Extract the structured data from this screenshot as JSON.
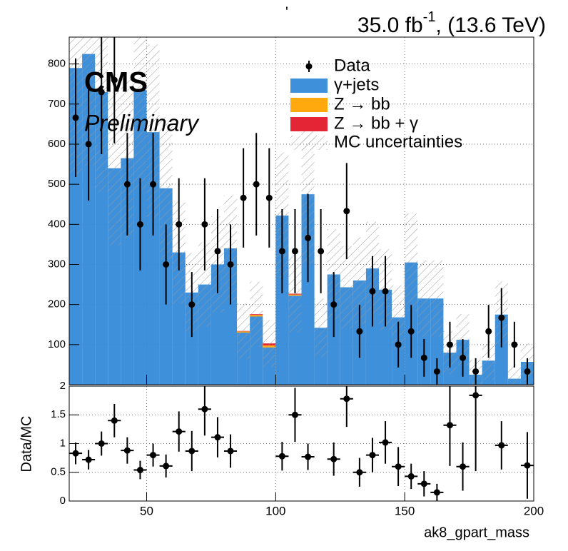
{
  "header": {
    "mark": "'",
    "lumi_prefix": "35.0 fb",
    "lumi_sup": "-1",
    "lumi_suffix": ", (13.6 TeV)"
  },
  "chart_data": [
    {
      "type": "histogram",
      "label": "CMS",
      "sublabel": "Preliminary",
      "bins": [
        20,
        25,
        30,
        35,
        40,
        45,
        50,
        55,
        60,
        65,
        70,
        75,
        80,
        85,
        90,
        95,
        100,
        105,
        110,
        115,
        120,
        125,
        130,
        135,
        140,
        145,
        150,
        155,
        160,
        165,
        170,
        175,
        180,
        185,
        190,
        195,
        200
      ],
      "series": [
        {
          "name": "γ+jets",
          "color": "#3f90da",
          "values": [
            790,
            825,
            730,
            540,
            565,
            735,
            630,
            490,
            330,
            230,
            250,
            300,
            340,
            130,
            170,
            93,
            422,
            222,
            475,
            142,
            275,
            243,
            260,
            290,
            237,
            168,
            305,
            215,
            215,
            80,
            112,
            25,
            60,
            175,
            15,
            57
          ]
        },
        {
          "name": "Z → bb",
          "color": "#ffa90e",
          "values": [
            0,
            0,
            0,
            0,
            0,
            0,
            0,
            0,
            0,
            0,
            0,
            0,
            0,
            3,
            4,
            5,
            0,
            3,
            0,
            0,
            0,
            0,
            0,
            0,
            0,
            0,
            0,
            0,
            0,
            0,
            0,
            0,
            0,
            0,
            0,
            0
          ]
        },
        {
          "name": "Z → bb + γ",
          "color": "#e42536",
          "values": [
            0,
            0,
            0,
            0,
            0,
            0,
            0,
            0,
            0,
            0,
            0,
            0,
            0,
            1,
            2,
            5,
            0,
            2,
            0,
            0,
            0,
            0,
            0,
            0,
            0,
            0,
            0,
            0,
            0,
            0,
            0,
            0,
            0,
            0,
            0,
            0
          ]
        }
      ],
      "uncertainty": {
        "name": "MC uncertainties",
        "values": [
          267,
          278,
          249,
          192,
          200,
          250,
          219,
          177,
          129,
          99,
          105,
          120,
          132,
          69,
          81,
          58,
          157,
          97,
          173,
          73,
          113,
          103,
          108,
          117,
          101,
          80,
          122,
          95,
          95,
          54,
          64,
          38,
          48,
          83,
          35,
          47
        ]
      },
      "data": {
        "name": "Data",
        "x": [
          22.5,
          27.5,
          32.5,
          37.5,
          42.5,
          47.5,
          52.5,
          57.5,
          62.5,
          67.5,
          72.5,
          77.5,
          82.5,
          87.5,
          92.5,
          97.5,
          102.5,
          107.5,
          112.5,
          117.5,
          122.5,
          127.5,
          132.5,
          137.5,
          142.5,
          147.5,
          152.5,
          157.5,
          162.5,
          167.5,
          172.5,
          177.5,
          182.5,
          187.5,
          192.5,
          197.5
        ],
        "values": [
          666,
          600,
          730,
          760,
          500,
          400,
          500,
          300,
          400,
          200,
          400,
          333,
          300,
          466,
          500,
          466,
          333,
          333,
          366,
          333,
          200,
          433,
          133,
          233,
          233,
          100,
          133,
          67,
          33,
          100,
          67,
          33,
          133,
          167,
          100,
          33
        ],
        "errors": [
          148,
          141,
          155,
          158,
          128,
          115,
          128,
          100,
          115,
          81,
          115,
          105,
          100,
          124,
          128,
          124,
          105,
          105,
          110,
          105,
          81,
          120,
          66,
          88,
          88,
          57,
          66,
          47,
          33,
          57,
          47,
          33,
          66,
          74,
          57,
          33
        ]
      },
      "xlim": [
        20,
        200
      ],
      "ylim": [
        0,
        867
      ],
      "yticks": [
        100,
        200,
        300,
        400,
        500,
        600,
        700,
        800
      ],
      "grid": true
    },
    {
      "type": "ratio",
      "ylabel": "Data/MC",
      "xlabel": "ak8_gpart_mass",
      "x": [
        22.5,
        27.5,
        32.5,
        37.5,
        42.5,
        47.5,
        52.5,
        57.5,
        62.5,
        67.5,
        72.5,
        77.5,
        82.5,
        87.5,
        92.5,
        97.5,
        102.5,
        107.5,
        112.5,
        117.5,
        122.5,
        127.5,
        132.5,
        137.5,
        142.5,
        147.5,
        152.5,
        157.5,
        162.5,
        167.5,
        172.5,
        177.5,
        182.5,
        187.5,
        192.5,
        197.5
      ],
      "values": [
        0.83,
        0.72,
        1.0,
        1.4,
        0.88,
        0.54,
        0.8,
        0.61,
        1.21,
        0.87,
        1.6,
        1.11,
        0.87,
        null,
        null,
        null,
        0.78,
        1.5,
        0.77,
        null,
        0.73,
        1.78,
        0.5,
        0.8,
        1.02,
        0.6,
        0.43,
        0.3,
        0.15,
        1.32,
        0.6,
        1.84,
        null,
        0.97,
        null,
        0.62
      ],
      "errors": [
        0.19,
        0.17,
        0.21,
        0.29,
        0.23,
        0.16,
        0.2,
        0.2,
        0.35,
        0.35,
        0.46,
        0.35,
        0.29,
        null,
        null,
        null,
        0.25,
        0.47,
        0.23,
        null,
        0.29,
        0.49,
        0.25,
        0.3,
        0.37,
        0.34,
        0.22,
        0.22,
        0.15,
        0.71,
        0.42,
        1.32,
        null,
        0.42,
        null,
        0.58
      ],
      "xlim": [
        20,
        200
      ],
      "ylim": [
        0,
        2
      ],
      "yticks": [
        0,
        0.5,
        1,
        1.5,
        2
      ],
      "xticks": [
        50,
        100,
        150,
        200
      ],
      "grid": true
    }
  ]
}
